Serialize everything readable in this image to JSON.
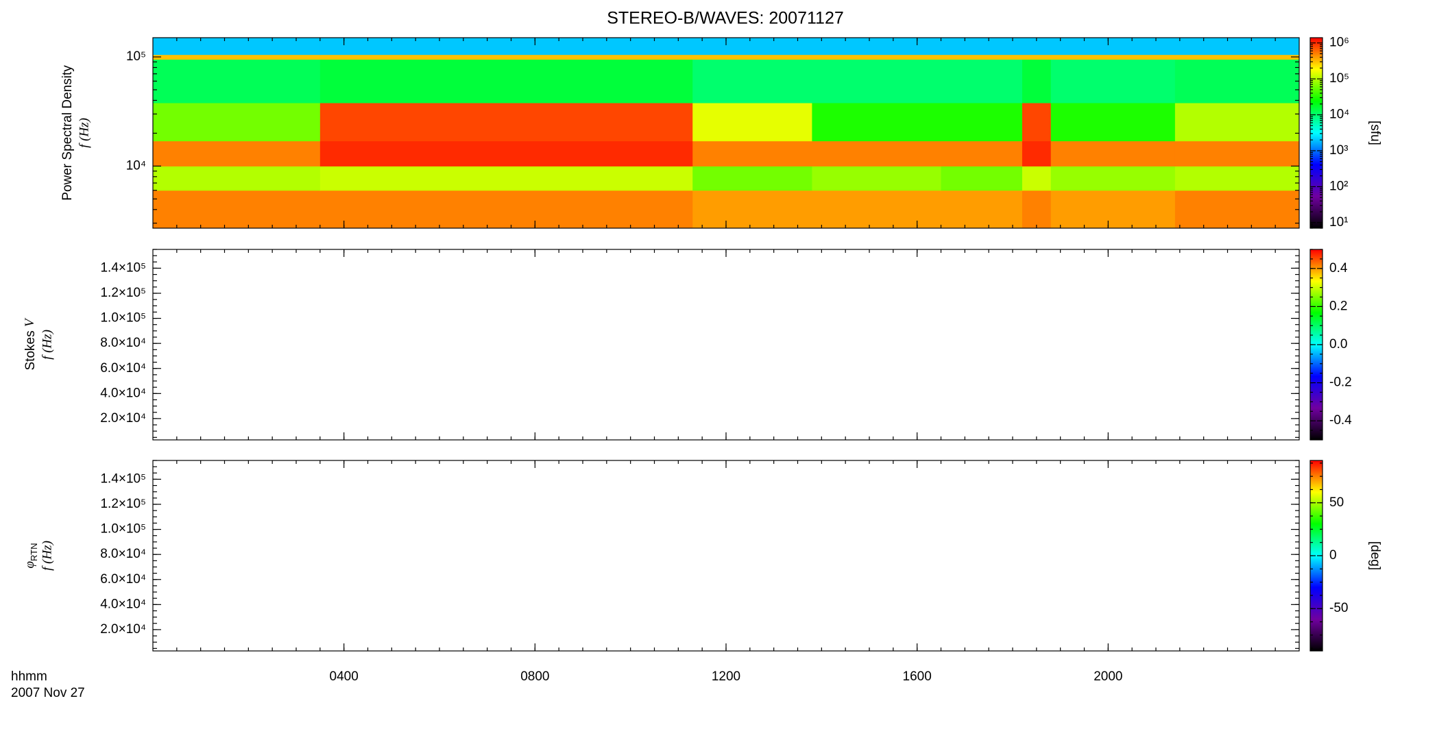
{
  "title": "STEREO-B/WAVES: 20071127",
  "time_label": "hhmm",
  "date_label": "2007 Nov 27",
  "colorscale": [
    "#000000",
    "#7000a0",
    "#0000ff",
    "#00ffff",
    "#00ff00",
    "#ffff00",
    "#ff0000"
  ],
  "chart_data": [
    {
      "type": "heatmap",
      "ylabel": "Power Spectral Density",
      "ylabel2": "f (Hz)",
      "zlabel": "[sfu]",
      "xlim": [
        0,
        24
      ],
      "xticks": [
        4,
        8,
        12,
        16,
        20
      ],
      "ylim": [
        2700,
        150000
      ],
      "ylog": true,
      "yticks": [
        {
          "value": 10000,
          "label": "10⁴"
        },
        {
          "value": 100000,
          "label": "10⁵"
        }
      ],
      "zlim": [
        7,
        1400000
      ],
      "zlog": true,
      "zticks": [
        {
          "value": 10,
          "label": "10¹"
        },
        {
          "value": 100,
          "label": "10²"
        },
        {
          "value": 1000,
          "label": "10³"
        },
        {
          "value": 10000,
          "label": "10⁴"
        },
        {
          "value": 100000,
          "label": "10⁵"
        },
        {
          "value": 1000000,
          "label": "10⁶"
        }
      ],
      "x_edges": [
        0,
        3.5,
        11.3,
        13.8,
        16.5,
        18.2,
        18.8,
        21.4,
        24
      ],
      "y_edges": [
        2700,
        6000,
        10000,
        17000,
        38000,
        95000,
        105000,
        150000
      ],
      "values": [
        [
          500000,
          500000,
          400000,
          400000,
          400000,
          500000,
          400000,
          500000
        ],
        [
          100000,
          120000,
          60000,
          80000,
          60000,
          120000,
          80000,
          100000
        ],
        [
          500000,
          1000000,
          500000,
          500000,
          500000,
          1000000,
          500000,
          500000
        ],
        [
          60000,
          800000,
          150000,
          30000,
          30000,
          800000,
          30000,
          100000
        ],
        [
          12000,
          15000,
          10000,
          10000,
          10000,
          15000,
          10000,
          12000
        ],
        [
          300000,
          300000,
          300000,
          300000,
          300000,
          300000,
          300000,
          300000
        ],
        [
          2000,
          2000,
          2000,
          2000,
          2000,
          2000,
          2000,
          2000
        ]
      ]
    },
    {
      "type": "heatmap",
      "ylabel": "Stokes",
      "ylabel_symbol": "V",
      "ylabel2": "f (Hz)",
      "xlim": [
        0,
        24
      ],
      "xticks": [
        4,
        8,
        12,
        16,
        20
      ],
      "ylim": [
        3000,
        155000
      ],
      "ylog": false,
      "yticks": [
        {
          "value": 20000,
          "label": "2.0×10⁴"
        },
        {
          "value": 40000,
          "label": "4.0×10⁴"
        },
        {
          "value": 60000,
          "label": "6.0×10⁴"
        },
        {
          "value": 80000,
          "label": "8.0×10⁴"
        },
        {
          "value": 100000,
          "label": "1.0×10⁵"
        },
        {
          "value": 120000,
          "label": "1.2×10⁵"
        },
        {
          "value": 140000,
          "label": "1.4×10⁵"
        }
      ],
      "zlim": [
        -0.5,
        0.5
      ],
      "zlog": false,
      "zticks": [
        -0.4,
        -0.2,
        {
          "value": 0,
          "label": "0.0"
        },
        0.2,
        0.4
      ]
    },
    {
      "type": "heatmap",
      "ylabel_symbol": "φ",
      "ylabel_subscript": "RTN",
      "ylabel2": "f (Hz)",
      "zlabel": "[deg]",
      "xlim": [
        0,
        24
      ],
      "xticks": [
        {
          "value": 4,
          "label": "0400"
        },
        {
          "value": 8,
          "label": "0800"
        },
        {
          "value": 12,
          "label": "1200"
        },
        {
          "value": 16,
          "label": "1600"
        },
        {
          "value": 20,
          "label": "2000"
        }
      ],
      "ylim": [
        3000,
        155000
      ],
      "ylog": false,
      "yticks": [
        {
          "value": 20000,
          "label": "2.0×10⁴"
        },
        {
          "value": 40000,
          "label": "4.0×10⁴"
        },
        {
          "value": 60000,
          "label": "6.0×10⁴"
        },
        {
          "value": 80000,
          "label": "8.0×10⁴"
        },
        {
          "value": 100000,
          "label": "1.0×10⁵"
        },
        {
          "value": 120000,
          "label": "1.2×10⁵"
        },
        {
          "value": 140000,
          "label": "1.4×10⁵"
        }
      ],
      "zlim": [
        -90,
        90
      ],
      "zlog": false,
      "zticks": [
        -50,
        0,
        50
      ]
    }
  ]
}
